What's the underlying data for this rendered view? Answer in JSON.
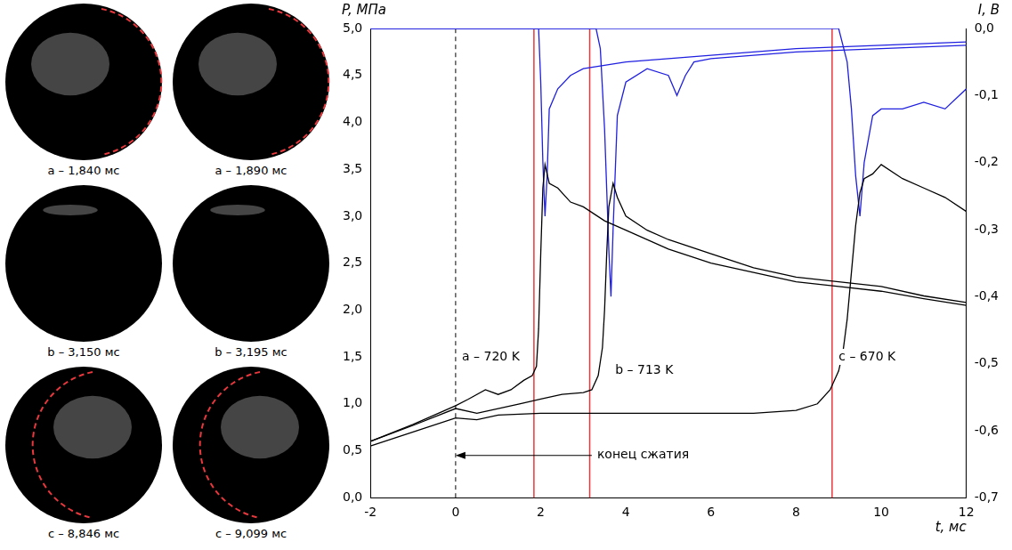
{
  "chart_data": {
    "type": "line",
    "x_label": "t, мс",
    "y_label": "P, МПа",
    "y2_label": "I, В",
    "xlim": [
      -2,
      12
    ],
    "xticks": [
      -2,
      0,
      2,
      4,
      6,
      8,
      10,
      12
    ],
    "ylim": [
      0,
      5
    ],
    "yticks": [
      {
        "value": 0,
        "label": "0,0"
      },
      {
        "value": 0.5,
        "label": "0,5"
      },
      {
        "value": 1,
        "label": "1,0"
      },
      {
        "value": 1.5,
        "label": "1,5"
      },
      {
        "value": 2,
        "label": "2,0"
      },
      {
        "value": 2.5,
        "label": "2,5"
      },
      {
        "value": 3,
        "label": "3,0"
      },
      {
        "value": 3.5,
        "label": "3,5"
      },
      {
        "value": 4,
        "label": "4,0"
      },
      {
        "value": 4.5,
        "label": "4,5"
      },
      {
        "value": 5,
        "label": "5,0"
      }
    ],
    "y2lim": [
      -0.7,
      0
    ],
    "y2ticks": [
      {
        "value": -0.7,
        "label": "-0,7"
      },
      {
        "value": -0.6,
        "label": "-0,6"
      },
      {
        "value": -0.5,
        "label": "-0,5"
      },
      {
        "value": -0.4,
        "label": "-0,4"
      },
      {
        "value": -0.3,
        "label": "-0,3"
      },
      {
        "value": -0.2,
        "label": "-0,2"
      },
      {
        "value": -0.1,
        "label": "-0,1"
      },
      {
        "value": 0,
        "label": "0,0"
      }
    ],
    "grid": false,
    "series": [
      {
        "color": "#000000",
        "axis": "y",
        "x": [
          -2,
          -1,
          0,
          0.3,
          0.7,
          1.0,
          1.3,
          1.6,
          1.8,
          1.9,
          1.95,
          2.0,
          2.05,
          2.1,
          2.2,
          2.4,
          2.7,
          3.0,
          3.5,
          4,
          5,
          6,
          7,
          8,
          9,
          10,
          11,
          12
        ],
        "values": [
          0.6,
          0.78,
          0.98,
          1.05,
          1.15,
          1.1,
          1.15,
          1.25,
          1.3,
          1.4,
          1.8,
          2.6,
          3.3,
          3.55,
          3.35,
          3.3,
          3.15,
          3.1,
          2.95,
          2.85,
          2.65,
          2.5,
          2.4,
          2.3,
          2.25,
          2.2,
          2.12,
          2.05
        ]
      },
      {
        "color": "#000000",
        "axis": "y",
        "x": [
          -2,
          -1,
          0,
          0.5,
          1,
          1.5,
          2,
          2.5,
          3,
          3.2,
          3.35,
          3.45,
          3.5,
          3.55,
          3.6,
          3.7,
          3.8,
          4,
          4.5,
          5,
          6,
          7,
          8,
          9,
          10,
          11,
          12
        ],
        "values": [
          0.6,
          0.77,
          0.95,
          0.9,
          0.95,
          1.0,
          1.05,
          1.1,
          1.12,
          1.15,
          1.3,
          1.6,
          2.0,
          2.6,
          3.1,
          3.35,
          3.2,
          3.0,
          2.85,
          2.75,
          2.6,
          2.45,
          2.35,
          2.3,
          2.25,
          2.15,
          2.08
        ]
      },
      {
        "color": "#000000",
        "axis": "y",
        "x": [
          -2,
          -1,
          0,
          0.5,
          1,
          2,
          3,
          4,
          5,
          6,
          7,
          8,
          8.5,
          8.8,
          9.0,
          9.1,
          9.2,
          9.3,
          9.4,
          9.5,
          9.6,
          9.8,
          10,
          10.5,
          11,
          11.5,
          12
        ],
        "values": [
          0.55,
          0.7,
          0.85,
          0.83,
          0.88,
          0.9,
          0.9,
          0.9,
          0.9,
          0.9,
          0.9,
          0.93,
          1.0,
          1.15,
          1.35,
          1.55,
          1.9,
          2.4,
          2.9,
          3.25,
          3.4,
          3.45,
          3.55,
          3.4,
          3.3,
          3.2,
          3.05
        ]
      },
      {
        "color": "#1f1fe0",
        "axis": "y2",
        "x": [
          -2,
          1.85,
          1.95,
          2.0,
          2.05,
          2.1,
          2.15,
          2.2,
          2.4,
          2.7,
          3,
          4,
          5,
          6,
          8,
          10,
          12
        ],
        "values": [
          0,
          0,
          0,
          -0.08,
          -0.2,
          -0.28,
          -0.22,
          -0.12,
          -0.09,
          -0.07,
          -0.06,
          -0.05,
          -0.045,
          -0.04,
          -0.03,
          -0.025,
          -0.02
        ]
      },
      {
        "color": "#1f1fe0",
        "axis": "y2",
        "x": [
          -2,
          3.3,
          3.4,
          3.5,
          3.6,
          3.65,
          3.7,
          3.8,
          4,
          4.5,
          5,
          5.2,
          5.4,
          5.6,
          6,
          8,
          10,
          12
        ],
        "values": [
          0,
          0,
          -0.03,
          -0.15,
          -0.33,
          -0.4,
          -0.3,
          -0.13,
          -0.08,
          -0.06,
          -0.07,
          -0.1,
          -0.07,
          -0.05,
          -0.045,
          -0.035,
          -0.03,
          -0.025
        ]
      },
      {
        "color": "#1f1fe0",
        "axis": "y2",
        "x": [
          -2,
          9.0,
          9.2,
          9.3,
          9.4,
          9.5,
          9.6,
          9.8,
          10,
          10.5,
          11,
          11.5,
          12
        ],
        "values": [
          0,
          0,
          -0.05,
          -0.12,
          -0.22,
          -0.28,
          -0.2,
          -0.13,
          -0.12,
          -0.12,
          -0.11,
          -0.12,
          -0.09
        ]
      }
    ],
    "vlines": [
      {
        "x": 0,
        "color": "#000000",
        "line_style": "dashed"
      },
      {
        "x": 1.84,
        "color": "#e8383d",
        "line_style": "solid"
      },
      {
        "x": 3.15,
        "color": "#e8383d",
        "line_style": "solid"
      },
      {
        "x": 8.846,
        "color": "#e8383d",
        "line_style": "solid"
      }
    ],
    "annotations": [
      {
        "text": "a – 720 K",
        "x": 0.15,
        "y": 1.5
      },
      {
        "text": "b – 713 K",
        "x": 3.75,
        "y": 1.35
      },
      {
        "text": "c – 670 K",
        "x": 9.0,
        "y": 1.5
      }
    ],
    "arrow": {
      "text": "конец сжатия",
      "x": 3.2,
      "x_end": 0,
      "y": 0.45
    }
  },
  "frames": [
    {
      "caption": "a – 1,840 мс"
    },
    {
      "caption": "a – 1,890 мс"
    },
    {
      "caption": "b – 3,150 мс"
    },
    {
      "caption": "b – 3,195 мс"
    },
    {
      "caption": "c – 8,846 мс"
    },
    {
      "caption": "c – 9,099 мс"
    }
  ]
}
